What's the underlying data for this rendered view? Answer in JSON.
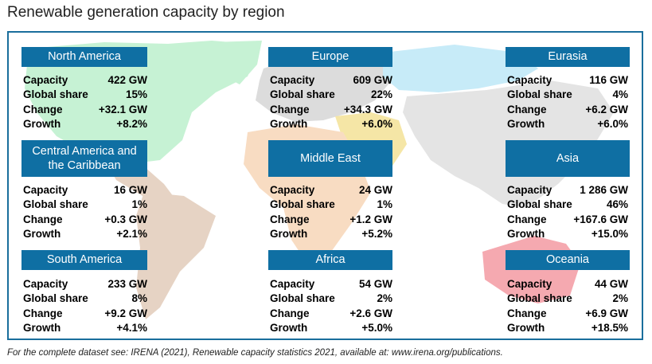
{
  "title": "Renewable generation capacity by region",
  "footnote": "For the complete dataset see: IRENA (2021), Renewable capacity statistics 2021, available at: www.irena.org/publications.",
  "colors": {
    "header_bg": "#0f6fa3",
    "frame": "#1a6e9c",
    "north_america": "#c6f2d4",
    "central_america": "#e6d3c4",
    "south_america": "#e6d3c4",
    "europe": "#dcdcdc",
    "eurasia": "#c7ebf8",
    "middle_east": "#f5e6a6",
    "africa": "#f8dcc2",
    "asia": "#e4e4e4",
    "oceania": "#f5a9b0"
  },
  "stat_labels": {
    "capacity": "Capacity",
    "share": "Global share",
    "change": "Change",
    "growth": "Growth"
  },
  "chart_data": {
    "type": "table",
    "title": "Renewable generation capacity by region",
    "columns": [
      "Capacity",
      "Global share",
      "Change",
      "Growth"
    ],
    "regions": [
      {
        "name": "North America",
        "capacity": "422 GW",
        "share": "15%",
        "change": "+32.1 GW",
        "growth": "+8.2%"
      },
      {
        "name": "Central America and the Caribbean",
        "capacity": "16 GW",
        "share": "1%",
        "change": "+0.3 GW",
        "growth": "+2.1%"
      },
      {
        "name": "South America",
        "capacity": "233 GW",
        "share": "8%",
        "change": "+9.2 GW",
        "growth": "+4.1%"
      },
      {
        "name": "Europe",
        "capacity": "609 GW",
        "share": "22%",
        "change": "+34.3 GW",
        "growth": "+6.0%"
      },
      {
        "name": "Middle East",
        "capacity": "24 GW",
        "share": "1%",
        "change": "+1.2 GW",
        "growth": "+5.2%"
      },
      {
        "name": "Africa",
        "capacity": "54 GW",
        "share": "2%",
        "change": "+2.6 GW",
        "growth": "+5.0%"
      },
      {
        "name": "Eurasia",
        "capacity": "116 GW",
        "share": "4%",
        "change": "+6.2 GW",
        "growth": "+6.0%"
      },
      {
        "name": "Asia",
        "capacity": "1 286 GW",
        "share": "46%",
        "change": "+167.6 GW",
        "growth": "+15.0%"
      },
      {
        "name": "Oceania",
        "capacity": "44 GW",
        "share": "2%",
        "change": "+6.9 GW",
        "growth": "+18.5%"
      }
    ]
  }
}
